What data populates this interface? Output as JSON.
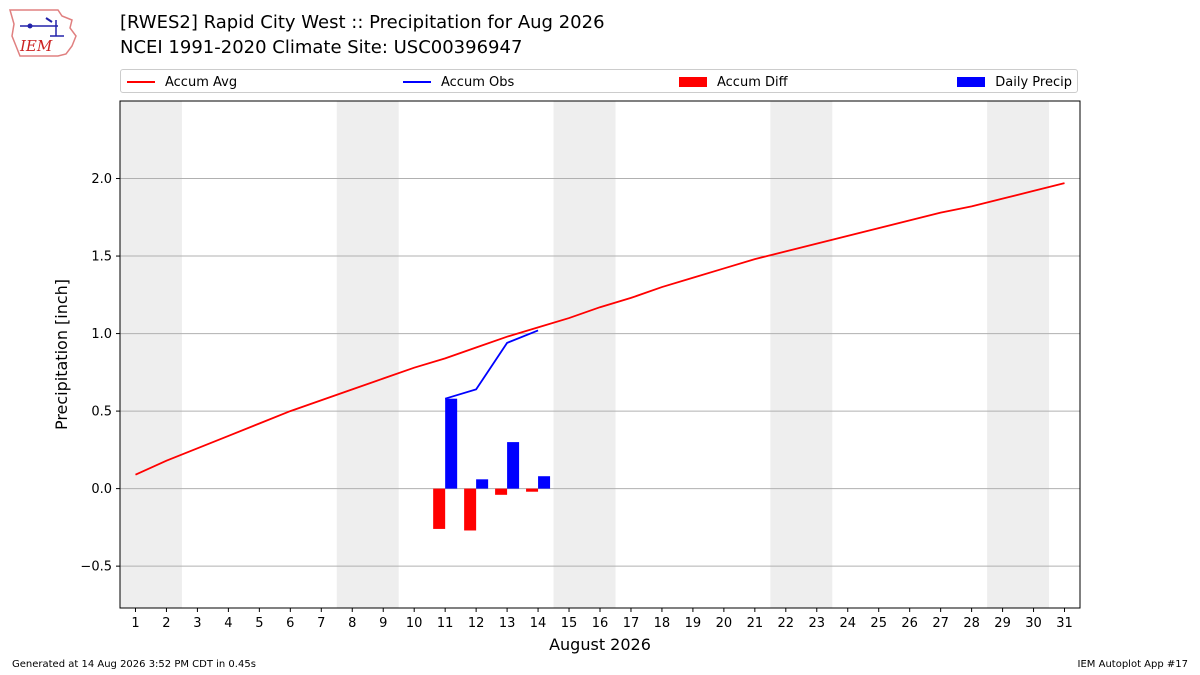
{
  "title": "[RWES2] Rapid City West :: Precipitation for Aug 2026",
  "subtitle": "NCEI 1991-2020 Climate Site: USC00396947",
  "logo_text": "IEM",
  "footer_left": "Generated at 14 Aug 2026 3:52 PM CDT in 0.45s",
  "footer_right": "IEM Autoplot App #17",
  "colors": {
    "avg": "#ff0000",
    "obs": "#0000ff",
    "diff": "#ff0000",
    "daily": "#0000ff",
    "weekend": "#eeeeee",
    "grid": "#b0b0b0"
  },
  "legend": [
    {
      "label": "Accum Avg",
      "kind": "line",
      "color": "#ff0000"
    },
    {
      "label": "Accum Obs",
      "kind": "line",
      "color": "#0000ff"
    },
    {
      "label": "Accum Diff",
      "kind": "patch",
      "color": "#ff0000"
    },
    {
      "label": "Daily Precip",
      "kind": "patch",
      "color": "#0000ff"
    }
  ],
  "chart_data": {
    "type": "bar",
    "title": "[RWES2] Rapid City West :: Precipitation for Aug 2026",
    "xlabel": "August 2026",
    "ylabel": "Precipitation [inch]",
    "ylim": [
      -0.77,
      2.5
    ],
    "xlim": [
      0.5,
      31.5
    ],
    "yticks": [
      -0.5,
      0.0,
      0.5,
      1.0,
      1.5,
      2.0
    ],
    "ytick_labels": [
      "−0.5",
      "0.0",
      "0.5",
      "1.0",
      "1.5",
      "2.0"
    ],
    "x": [
      1,
      2,
      3,
      4,
      5,
      6,
      7,
      8,
      9,
      10,
      11,
      12,
      13,
      14,
      15,
      16,
      17,
      18,
      19,
      20,
      21,
      22,
      23,
      24,
      25,
      26,
      27,
      28,
      29,
      30,
      31
    ],
    "weekend_spans": [
      [
        0.5,
        2.5
      ],
      [
        7.5,
        9.5
      ],
      [
        14.5,
        16.5
      ],
      [
        21.5,
        23.5
      ],
      [
        28.5,
        30.5
      ]
    ],
    "grid": "y",
    "legend_position": "top",
    "series": [
      {
        "name": "Accum Avg",
        "type": "line",
        "x": [
          1,
          2,
          3,
          4,
          5,
          6,
          7,
          8,
          9,
          10,
          11,
          12,
          13,
          14,
          15,
          16,
          17,
          18,
          19,
          20,
          21,
          22,
          23,
          24,
          25,
          26,
          27,
          28,
          29,
          30,
          31
        ],
        "values": [
          0.09,
          0.18,
          0.26,
          0.34,
          0.42,
          0.5,
          0.57,
          0.64,
          0.71,
          0.78,
          0.84,
          0.91,
          0.98,
          1.04,
          1.1,
          1.17,
          1.23,
          1.3,
          1.36,
          1.42,
          1.48,
          1.53,
          1.58,
          1.63,
          1.68,
          1.73,
          1.78,
          1.82,
          1.87,
          1.92,
          1.97
        ]
      },
      {
        "name": "Accum Obs",
        "type": "line",
        "x": [
          11,
          12,
          13,
          14
        ],
        "values": [
          0.58,
          0.64,
          0.94,
          1.02
        ]
      },
      {
        "name": "Accum Diff",
        "type": "bar",
        "x": [
          11,
          12,
          13,
          14
        ],
        "values": [
          -0.26,
          -0.27,
          -0.04,
          -0.02
        ]
      },
      {
        "name": "Daily Precip",
        "type": "bar",
        "x": [
          11,
          12,
          13,
          14
        ],
        "values": [
          0.58,
          0.06,
          0.3,
          0.08
        ]
      }
    ]
  }
}
